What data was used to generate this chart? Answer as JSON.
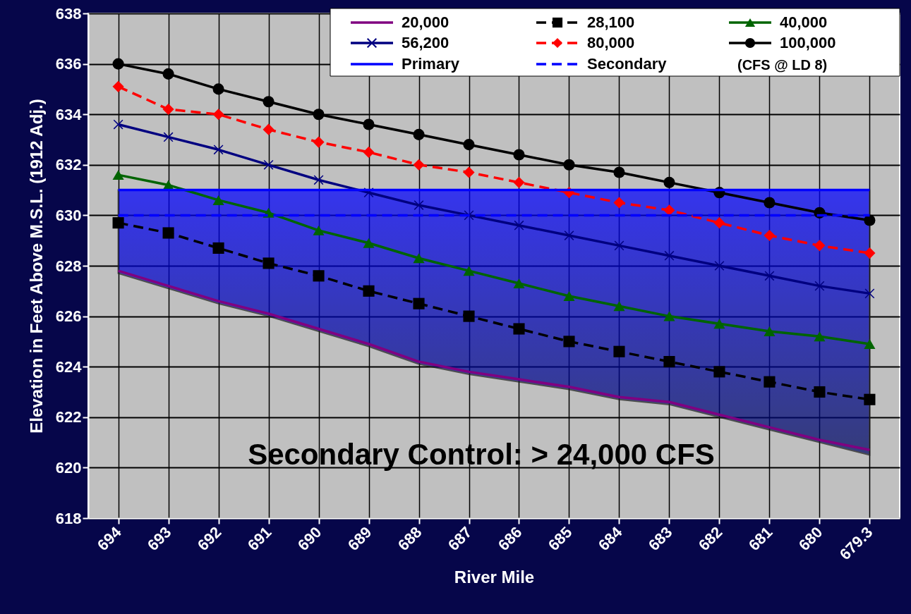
{
  "chart_data": {
    "type": "line",
    "xlabel": "River Mile",
    "ylabel": "Elevation in Feet Above M.S.L. (1912 Adj.)",
    "legend_title": "(CFS @ LD 8)",
    "categories": [
      "694",
      "693",
      "692",
      "691",
      "690",
      "689",
      "688",
      "687",
      "686",
      "685",
      "684",
      "683",
      "682",
      "681",
      "680",
      "679.3"
    ],
    "ylim": [
      618,
      638
    ],
    "yticks": [
      618,
      620,
      622,
      624,
      626,
      628,
      630,
      632,
      634,
      636,
      638
    ],
    "grid": true,
    "legend": "top right",
    "annotations": [
      "Secondary Control:  > 24,000 CFS"
    ],
    "series": [
      {
        "name": "20,000",
        "color": "#800080",
        "marker": "none",
        "line_style": "solid",
        "values": [
          627.8,
          627.2,
          626.6,
          626.1,
          625.5,
          624.9,
          624.2,
          623.8,
          623.5,
          623.2,
          622.8,
          622.6,
          622.1,
          621.6,
          621.1,
          620.7
        ]
      },
      {
        "name": "28,100",
        "color": "#000000",
        "marker": "square",
        "line_style": "dashed",
        "values": [
          629.7,
          629.3,
          628.7,
          628.1,
          627.6,
          627.0,
          626.5,
          626.0,
          625.5,
          625.0,
          624.6,
          624.2,
          623.8,
          623.4,
          623.0,
          622.7
        ]
      },
      {
        "name": "40,000",
        "color": "#006400",
        "marker": "triangle",
        "line_style": "solid",
        "values": [
          631.6,
          631.2,
          630.6,
          630.1,
          629.4,
          628.9,
          628.3,
          627.8,
          627.3,
          626.8,
          626.4,
          626.0,
          625.7,
          625.4,
          625.2,
          624.9
        ]
      },
      {
        "name": "56,200",
        "color": "#000080",
        "marker": "cross",
        "line_style": "solid",
        "values": [
          633.6,
          633.1,
          632.6,
          632.0,
          631.4,
          630.9,
          630.4,
          630.0,
          629.6,
          629.2,
          628.8,
          628.4,
          628.0,
          627.6,
          627.2,
          626.9
        ]
      },
      {
        "name": "80,000",
        "color": "#ff0000",
        "marker": "diamond",
        "line_style": "dashed",
        "values": [
          635.1,
          634.2,
          634.0,
          633.4,
          632.9,
          632.5,
          632.0,
          631.7,
          631.3,
          630.9,
          630.5,
          630.2,
          629.7,
          629.2,
          628.8,
          628.5
        ]
      },
      {
        "name": "100,000",
        "color": "#000000",
        "marker": "circle",
        "line_style": "solid",
        "values": [
          636.0,
          635.6,
          635.0,
          634.5,
          634.0,
          633.6,
          633.2,
          632.8,
          632.4,
          632.0,
          631.7,
          631.3,
          630.9,
          630.5,
          630.1,
          629.8
        ]
      },
      {
        "name": "Primary",
        "color": "#0000ff",
        "marker": "none",
        "line_style": "solid",
        "values": [
          631,
          631,
          631,
          631,
          631,
          631,
          631,
          631,
          631,
          631,
          631,
          631,
          631,
          631,
          631,
          631
        ],
        "lower": [
          627.7,
          627.1,
          626.5,
          626.0,
          625.4,
          624.8,
          624.1,
          623.7,
          623.4,
          623.1,
          622.7,
          622.5,
          622.0,
          621.5,
          621.0,
          620.5
        ],
        "upper": [
          631,
          631,
          631,
          631,
          631,
          631,
          631,
          631,
          631,
          631,
          631,
          631,
          631,
          631,
          631,
          631
        ]
      },
      {
        "name": "Secondary",
        "color": "#0000ff",
        "marker": "none",
        "line_style": "dashed",
        "values": [
          630,
          630,
          630,
          630,
          630,
          630,
          630,
          630,
          630,
          630,
          630,
          630,
          630,
          630,
          630,
          630
        ]
      }
    ]
  }
}
